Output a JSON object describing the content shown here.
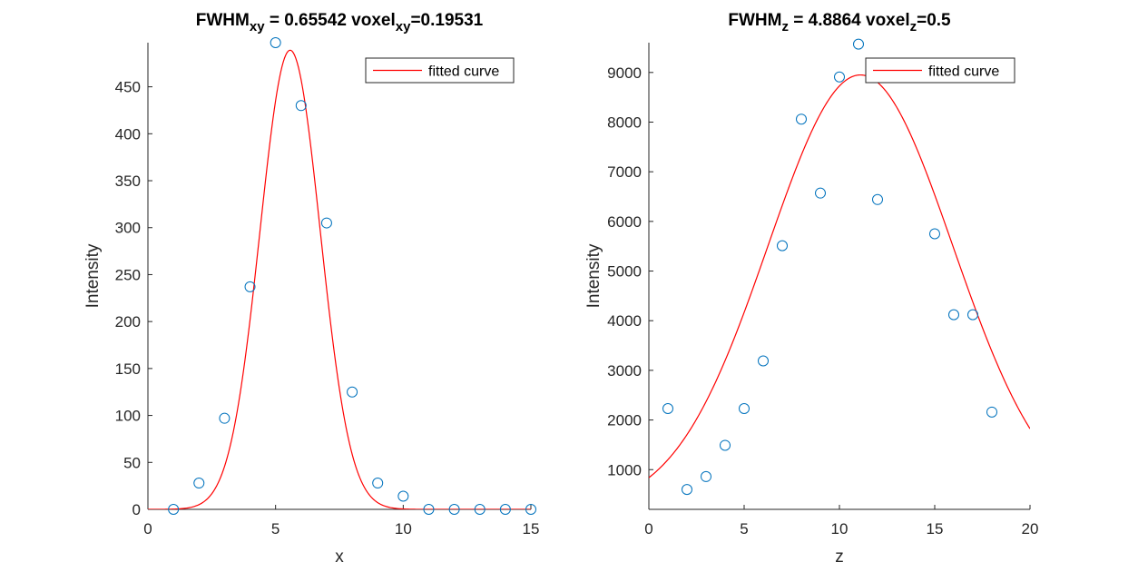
{
  "colors": {
    "marker": "#0072BD",
    "curve": "#FF0000",
    "axis": "#262626"
  },
  "chart_data": [
    {
      "type": "scatter",
      "title": {
        "parts": [
          {
            "text": "FWHM",
            "sub": false
          },
          {
            "text": "xy",
            "sub": true
          },
          {
            "text": " = 0.65542 voxel",
            "sub": false
          },
          {
            "text": "xy",
            "sub": true
          },
          {
            "text": "=0.19531",
            "sub": false
          }
        ]
      },
      "xlabel": "x",
      "ylabel": "Intensity",
      "xlim": [
        0,
        15
      ],
      "ylim": [
        0,
        497
      ],
      "xticks": [
        "0",
        "5",
        "10",
        "15"
      ],
      "yticks": [
        "0",
        "50",
        "100",
        "150",
        "200",
        "250",
        "300",
        "350",
        "400",
        "450"
      ],
      "legend": {
        "label": "fitted curve",
        "location": "top-right"
      },
      "grid": false,
      "series": [
        {
          "kind": "markers",
          "x": [
            1,
            2,
            3,
            4,
            5,
            6,
            7,
            8,
            9,
            10,
            11,
            12,
            13,
            14,
            15
          ],
          "y": [
            0,
            28,
            97,
            237,
            497,
            430,
            305,
            125,
            28,
            14,
            0,
            0,
            0,
            0,
            0
          ]
        },
        {
          "kind": "curve",
          "name": "fitted curve",
          "model": "gaussian",
          "amplitude": 489,
          "center": 5.57,
          "sigma": 1.18,
          "offset": 0,
          "x_range": [
            0,
            15
          ]
        }
      ]
    },
    {
      "type": "scatter",
      "title": {
        "parts": [
          {
            "text": "FWHM",
            "sub": false
          },
          {
            "text": "z",
            "sub": true
          },
          {
            "text": " = 4.8864 voxel",
            "sub": false
          },
          {
            "text": "z",
            "sub": true
          },
          {
            "text": "=0.5",
            "sub": false
          }
        ]
      },
      "xlabel": "z",
      "ylabel": "Intensity",
      "xlim": [
        0,
        20
      ],
      "ylim": [
        200,
        9600
      ],
      "xticks": [
        "0",
        "5",
        "10",
        "15",
        "20"
      ],
      "yticks": [
        "1000",
        "2000",
        "3000",
        "4000",
        "5000",
        "6000",
        "7000",
        "8000",
        "9000"
      ],
      "legend": {
        "label": "fitted curve",
        "location": "top-right"
      },
      "grid": false,
      "series": [
        {
          "kind": "markers",
          "x": [
            1,
            2,
            3,
            4,
            5,
            6,
            7,
            8,
            9,
            10,
            11,
            12,
            15,
            16,
            17,
            18
          ],
          "y": [
            2230,
            600,
            860,
            1490,
            2230,
            3190,
            5510,
            8060,
            6570,
            8910,
            9570,
            6440,
            5750,
            4120,
            4120,
            2160
          ]
        },
        {
          "kind": "curve",
          "name": "fitted curve",
          "model": "gaussian",
          "amplitude": 8750,
          "center": 11.1,
          "sigma": 4.85,
          "offset": 200,
          "x_range": [
            0,
            20
          ]
        }
      ]
    }
  ]
}
